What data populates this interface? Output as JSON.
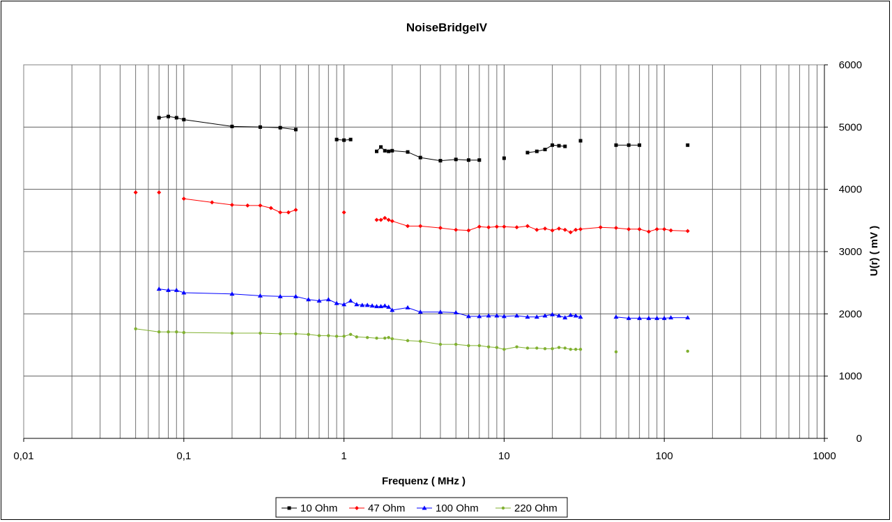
{
  "chart_data": {
    "type": "line",
    "title": "NoiseBridgeIV",
    "xlabel": "Frequenz ( MHz )",
    "ylabel": "U(r) ( mV )",
    "x_scale": "log",
    "xlim": [
      0.01,
      1000
    ],
    "ylim": [
      0,
      6000
    ],
    "x_tick_labels": [
      "0,01",
      "0,1",
      "1",
      "10",
      "100",
      "1000"
    ],
    "y_tick_labels": [
      "0",
      "1000",
      "2000",
      "3000",
      "4000",
      "5000",
      "6000"
    ],
    "grid": true,
    "legend_position": "bottom",
    "series": [
      {
        "name": "10 Ohm",
        "color": "#000000",
        "marker": "square",
        "segments": [
          [
            [
              0.07,
              5150
            ],
            [
              0.08,
              5170
            ],
            [
              0.09,
              5150
            ],
            [
              0.1,
              5120
            ],
            [
              0.2,
              5010
            ],
            [
              0.3,
              5000
            ],
            [
              0.4,
              4990
            ],
            [
              0.5,
              4960
            ]
          ],
          [
            [
              0.9,
              4800
            ],
            [
              1.0,
              4790
            ],
            [
              1.1,
              4800
            ]
          ],
          [
            [
              1.6,
              4610
            ],
            [
              1.7,
              4680
            ],
            [
              1.8,
              4620
            ],
            [
              1.9,
              4610
            ],
            [
              2.0,
              4620
            ],
            [
              2.5,
              4600
            ],
            [
              3.0,
              4510
            ],
            [
              4.0,
              4460
            ],
            [
              5.0,
              4480
            ],
            [
              6.0,
              4470
            ],
            [
              7.0,
              4470
            ]
          ],
          [
            [
              10,
              4500
            ]
          ],
          [
            [
              14,
              4590
            ],
            [
              16,
              4610
            ],
            [
              18,
              4640
            ],
            [
              20,
              4710
            ],
            [
              22,
              4700
            ],
            [
              24,
              4690
            ]
          ],
          [
            [
              30,
              4780
            ]
          ],
          [
            [
              50,
              4710
            ],
            [
              60,
              4710
            ],
            [
              70,
              4710
            ]
          ],
          [
            [
              140,
              4710
            ]
          ]
        ]
      },
      {
        "name": "47 Ohm",
        "color": "#ff0000",
        "marker": "diamond",
        "segments": [
          [
            [
              0.05,
              3950
            ]
          ],
          [
            [
              0.07,
              3950
            ]
          ],
          [
            [
              0.1,
              3850
            ],
            [
              0.15,
              3790
            ],
            [
              0.2,
              3750
            ],
            [
              0.25,
              3740
            ],
            [
              0.3,
              3740
            ],
            [
              0.35,
              3700
            ],
            [
              0.4,
              3630
            ],
            [
              0.45,
              3630
            ],
            [
              0.5,
              3670
            ]
          ],
          [
            [
              1.0,
              3630
            ]
          ],
          [
            [
              1.6,
              3510
            ],
            [
              1.7,
              3510
            ],
            [
              1.8,
              3540
            ],
            [
              1.9,
              3510
            ],
            [
              2.0,
              3490
            ],
            [
              2.5,
              3410
            ],
            [
              3,
              3410
            ],
            [
              4,
              3380
            ],
            [
              5,
              3350
            ],
            [
              6,
              3340
            ],
            [
              7,
              3400
            ],
            [
              8,
              3390
            ],
            [
              9,
              3400
            ],
            [
              10,
              3400
            ],
            [
              12,
              3390
            ],
            [
              14,
              3410
            ],
            [
              16,
              3350
            ],
            [
              18,
              3370
            ],
            [
              20,
              3340
            ],
            [
              22,
              3370
            ],
            [
              24,
              3350
            ],
            [
              26,
              3310
            ],
            [
              28,
              3350
            ],
            [
              30,
              3360
            ],
            [
              40,
              3390
            ],
            [
              50,
              3380
            ],
            [
              60,
              3360
            ],
            [
              70,
              3360
            ],
            [
              80,
              3320
            ],
            [
              90,
              3360
            ],
            [
              100,
              3360
            ],
            [
              110,
              3340
            ],
            [
              140,
              3330
            ]
          ]
        ]
      },
      {
        "name": "100 Ohm",
        "color": "#0000ff",
        "marker": "triangle",
        "segments": [
          [
            [
              0.07,
              2400
            ],
            [
              0.08,
              2380
            ],
            [
              0.09,
              2380
            ],
            [
              0.1,
              2340
            ],
            [
              0.2,
              2320
            ],
            [
              0.3,
              2290
            ],
            [
              0.4,
              2280
            ],
            [
              0.5,
              2280
            ],
            [
              0.6,
              2230
            ],
            [
              0.7,
              2210
            ],
            [
              0.8,
              2230
            ],
            [
              0.9,
              2170
            ],
            [
              1.0,
              2150
            ],
            [
              1.1,
              2210
            ],
            [
              1.2,
              2150
            ],
            [
              1.3,
              2140
            ],
            [
              1.4,
              2140
            ],
            [
              1.5,
              2130
            ],
            [
              1.6,
              2120
            ],
            [
              1.7,
              2120
            ],
            [
              1.8,
              2130
            ],
            [
              1.9,
              2110
            ],
            [
              2,
              2060
            ],
            [
              2.5,
              2100
            ],
            [
              3,
              2030
            ],
            [
              4,
              2030
            ],
            [
              5,
              2020
            ],
            [
              6,
              1960
            ],
            [
              7,
              1960
            ],
            [
              8,
              1970
            ],
            [
              9,
              1970
            ],
            [
              10,
              1960
            ],
            [
              12,
              1970
            ],
            [
              14,
              1950
            ],
            [
              16,
              1950
            ],
            [
              18,
              1970
            ],
            [
              20,
              1990
            ],
            [
              22,
              1970
            ],
            [
              24,
              1940
            ],
            [
              26,
              1980
            ],
            [
              28,
              1970
            ],
            [
              30,
              1950
            ]
          ],
          [
            [
              50,
              1950
            ],
            [
              60,
              1930
            ],
            [
              70,
              1930
            ],
            [
              80,
              1930
            ],
            [
              90,
              1930
            ],
            [
              100,
              1930
            ],
            [
              110,
              1940
            ],
            [
              140,
              1940
            ]
          ]
        ]
      },
      {
        "name": "220 Ohm",
        "color": "#80b030",
        "marker": "circle",
        "segments": [
          [
            [
              0.05,
              1760
            ],
            [
              0.07,
              1710
            ],
            [
              0.08,
              1710
            ],
            [
              0.09,
              1710
            ],
            [
              0.1,
              1700
            ],
            [
              0.2,
              1690
            ],
            [
              0.3,
              1690
            ],
            [
              0.4,
              1680
            ],
            [
              0.5,
              1680
            ],
            [
              0.6,
              1670
            ],
            [
              0.7,
              1650
            ],
            [
              0.8,
              1650
            ],
            [
              0.9,
              1640
            ],
            [
              1.0,
              1640
            ],
            [
              1.1,
              1670
            ],
            [
              1.2,
              1630
            ],
            [
              1.4,
              1620
            ],
            [
              1.6,
              1610
            ],
            [
              1.8,
              1610
            ],
            [
              1.9,
              1620
            ],
            [
              2,
              1600
            ],
            [
              2.5,
              1570
            ],
            [
              3,
              1560
            ],
            [
              4,
              1510
            ],
            [
              5,
              1510
            ],
            [
              6,
              1490
            ],
            [
              7,
              1490
            ],
            [
              8,
              1470
            ],
            [
              9,
              1460
            ],
            [
              10,
              1430
            ],
            [
              12,
              1470
            ],
            [
              14,
              1450
            ],
            [
              16,
              1450
            ],
            [
              18,
              1440
            ],
            [
              20,
              1440
            ],
            [
              22,
              1460
            ],
            [
              24,
              1450
            ],
            [
              26,
              1430
            ],
            [
              28,
              1430
            ],
            [
              30,
              1430
            ]
          ],
          [
            [
              50,
              1390
            ]
          ],
          [
            [
              140,
              1400
            ]
          ]
        ]
      }
    ]
  }
}
